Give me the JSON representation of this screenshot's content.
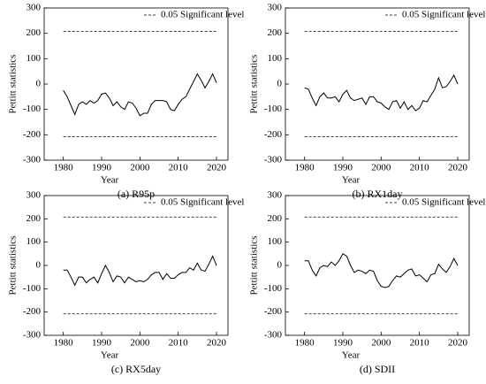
{
  "chart_data": [
    {
      "type": "line",
      "caption": "(a) R95p",
      "xlabel": "Year",
      "ylabel": "Pettitt statistics",
      "x": [
        1980,
        1981,
        1982,
        1983,
        1984,
        1985,
        1986,
        1987,
        1988,
        1989,
        1990,
        1991,
        1992,
        1993,
        1994,
        1995,
        1996,
        1997,
        1998,
        1999,
        2000,
        2001,
        2002,
        2003,
        2004,
        2005,
        2006,
        2007,
        2008,
        2009,
        2010,
        2011,
        2012,
        2013,
        2014,
        2015,
        2016,
        2017,
        2018,
        2019,
        2020
      ],
      "series": [
        {
          "color": "#000000",
          "values": [
            -25,
            -50,
            -85,
            -120,
            -80,
            -70,
            -80,
            -65,
            -75,
            -65,
            -40,
            -35,
            -55,
            -85,
            -70,
            -90,
            -100,
            -70,
            -75,
            -95,
            -125,
            -115,
            -115,
            -80,
            -65,
            -65,
            -65,
            -70,
            -100,
            -105,
            -80,
            -60,
            -50,
            -20,
            10,
            40,
            15,
            -15,
            10,
            40,
            5
          ]
        }
      ],
      "significance": {
        "label": "0.05 Significant level",
        "values": [
          208,
          -208
        ]
      },
      "xlim": [
        1975,
        2023
      ],
      "ylim": [
        -300,
        300
      ],
      "xticks": [
        1980,
        1990,
        2000,
        2010,
        2020
      ],
      "yticks": [
        -300,
        -200,
        -100,
        0,
        100,
        200,
        300
      ]
    },
    {
      "type": "line",
      "caption": "(b) RX1day",
      "xlabel": "Year",
      "ylabel": "Pettitt statistics",
      "x": [
        1980,
        1981,
        1982,
        1983,
        1984,
        1985,
        1986,
        1987,
        1988,
        1989,
        1990,
        1991,
        1992,
        1993,
        1994,
        1995,
        1996,
        1997,
        1998,
        1999,
        2000,
        2001,
        2002,
        2003,
        2004,
        2005,
        2006,
        2007,
        2008,
        2009,
        2010,
        2011,
        2012,
        2013,
        2014,
        2015,
        2016,
        2017,
        2018,
        2019,
        2020
      ],
      "series": [
        {
          "color": "#000000",
          "values": [
            -15,
            -20,
            -55,
            -85,
            -50,
            -35,
            -55,
            -55,
            -50,
            -70,
            -40,
            -25,
            -55,
            -65,
            -60,
            -55,
            -80,
            -50,
            -50,
            -70,
            -75,
            -90,
            -100,
            -70,
            -65,
            -95,
            -70,
            -100,
            -85,
            -105,
            -95,
            -65,
            -70,
            -45,
            -20,
            25,
            -15,
            -10,
            10,
            35,
            0
          ]
        }
      ],
      "significance": {
        "label": "0.05 Significant level",
        "values": [
          208,
          -208
        ]
      },
      "xlim": [
        1975,
        2023
      ],
      "ylim": [
        -300,
        300
      ],
      "xticks": [
        1980,
        1990,
        2000,
        2010,
        2020
      ],
      "yticks": [
        -300,
        -200,
        -100,
        0,
        100,
        200,
        300
      ]
    },
    {
      "type": "line",
      "caption": "(c) RX5day",
      "xlabel": "Year",
      "ylabel": "Pettitt statistics",
      "x": [
        1980,
        1981,
        1982,
        1983,
        1984,
        1985,
        1986,
        1987,
        1988,
        1989,
        1990,
        1991,
        1992,
        1993,
        1994,
        1995,
        1996,
        1997,
        1998,
        1999,
        2000,
        2001,
        2002,
        2003,
        2004,
        2005,
        2006,
        2007,
        2008,
        2009,
        2010,
        2011,
        2012,
        2013,
        2014,
        2015,
        2016,
        2017,
        2018,
        2019,
        2020
      ],
      "series": [
        {
          "color": "#000000",
          "values": [
            -20,
            -20,
            -50,
            -85,
            -50,
            -50,
            -75,
            -60,
            -50,
            -75,
            -35,
            0,
            -30,
            -70,
            -45,
            -50,
            -75,
            -50,
            -60,
            -70,
            -65,
            -70,
            -60,
            -40,
            -30,
            -30,
            -60,
            -35,
            -55,
            -55,
            -40,
            -30,
            -30,
            -10,
            -20,
            10,
            -20,
            -25,
            5,
            40,
            0
          ]
        }
      ],
      "significance": {
        "label": "0.05 Significant level",
        "values": [
          208,
          -208
        ]
      },
      "xlim": [
        1975,
        2023
      ],
      "ylim": [
        -300,
        300
      ],
      "xticks": [
        1980,
        1990,
        2000,
        2010,
        2020
      ],
      "yticks": [
        -300,
        -200,
        -100,
        0,
        100,
        200,
        300
      ]
    },
    {
      "type": "line",
      "caption": "(d) SDII",
      "xlabel": "Year",
      "ylabel": "Pettitt statistics",
      "x": [
        1980,
        1981,
        1982,
        1983,
        1984,
        1985,
        1986,
        1987,
        1988,
        1989,
        1990,
        1991,
        1992,
        1993,
        1994,
        1995,
        1996,
        1997,
        1998,
        1999,
        2000,
        2001,
        2002,
        2003,
        2004,
        2005,
        2006,
        2007,
        2008,
        2009,
        2010,
        2011,
        2012,
        2013,
        2014,
        2015,
        2016,
        2017,
        2018,
        2019,
        2020
      ],
      "series": [
        {
          "color": "#000000",
          "values": [
            20,
            20,
            -20,
            -45,
            -10,
            0,
            -5,
            15,
            0,
            20,
            50,
            40,
            0,
            -30,
            -20,
            -25,
            -35,
            -20,
            -25,
            -65,
            -90,
            -95,
            -90,
            -65,
            -45,
            -50,
            -35,
            -20,
            -15,
            -45,
            -40,
            -55,
            -70,
            -40,
            -35,
            5,
            -15,
            -30,
            -5,
            30,
            0
          ]
        }
      ],
      "significance": {
        "label": "0.05 Significant level",
        "values": [
          208,
          -208
        ]
      },
      "xlim": [
        1975,
        2023
      ],
      "ylim": [
        -300,
        300
      ],
      "xticks": [
        1980,
        1990,
        2000,
        2010,
        2020
      ],
      "yticks": [
        -300,
        -200,
        -100,
        0,
        100,
        200,
        300
      ]
    }
  ]
}
